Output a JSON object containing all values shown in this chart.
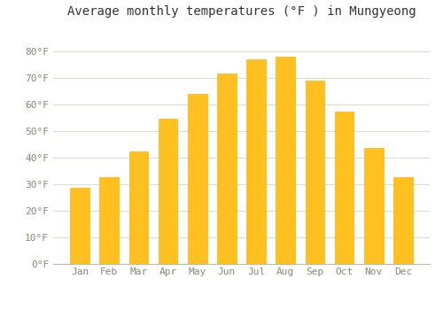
{
  "title": "Average monthly temperatures (°F ) in Mungyeong",
  "months": [
    "Jan",
    "Feb",
    "Mar",
    "Apr",
    "May",
    "Jun",
    "Jul",
    "Aug",
    "Sep",
    "Oct",
    "Nov",
    "Dec"
  ],
  "values": [
    28.4,
    32.5,
    42.3,
    54.5,
    64.0,
    71.6,
    77.0,
    78.1,
    68.9,
    57.2,
    43.7,
    32.5
  ],
  "bar_color": "#FFC020",
  "bar_edge_color": "#FFB000",
  "ylim": [
    0,
    90
  ],
  "yticks": [
    0,
    10,
    20,
    30,
    40,
    50,
    60,
    70,
    80
  ],
  "ytick_labels": [
    "0°F",
    "10°F",
    "20°F",
    "30°F",
    "40°F",
    "50°F",
    "60°F",
    "70°F",
    "80°F"
  ],
  "background_color": "#FFFFFF",
  "plot_bg_color": "#FFFFFF",
  "grid_color": "#DDDDCC",
  "title_fontsize": 10,
  "tick_fontsize": 8,
  "tick_color": "#888877",
  "title_color": "#333333"
}
